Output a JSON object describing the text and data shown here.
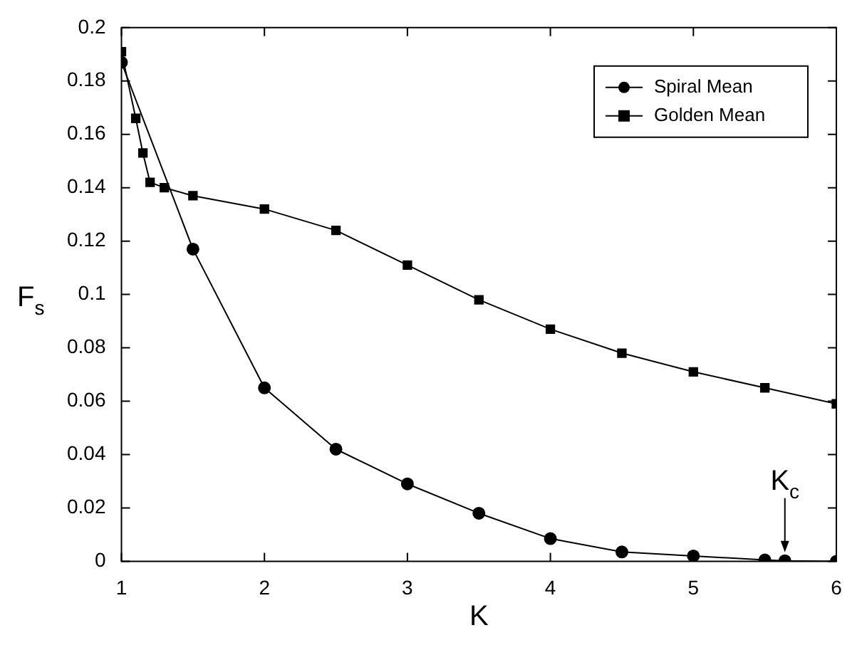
{
  "chart_data": {
    "type": "line",
    "xlabel": "K",
    "ylabel": "F$_{s}$",
    "xlim": [
      1,
      6
    ],
    "ylim": [
      0,
      0.2
    ],
    "xticks": [
      1,
      2,
      3,
      4,
      5,
      6
    ],
    "yticks": [
      0,
      0.02,
      0.04,
      0.06,
      0.08,
      0.1,
      0.12,
      0.14,
      0.16,
      0.18,
      0.2
    ],
    "grid": false,
    "legend": "top right",
    "line_style": "solid",
    "series": [
      {
        "name": "Spiral Mean",
        "color": "#000000",
        "marker": "circle",
        "x": [
          1,
          1.5,
          2,
          2.5,
          3,
          3.5,
          4,
          4.5,
          5,
          5.5,
          5.64,
          6
        ],
        "values": [
          0.187,
          0.117,
          0.065,
          0.042,
          0.029,
          0.018,
          0.0085,
          0.0035,
          0.002,
          0.0005,
          0.0002,
          0
        ]
      },
      {
        "name": "Golden Mean",
        "color": "#000000",
        "marker": "square",
        "x": [
          1,
          1.1,
          1.15,
          1.2,
          1.3,
          1.5,
          2,
          2.5,
          3,
          3.5,
          4,
          4.5,
          5,
          5.5,
          6
        ],
        "values": [
          0.191,
          0.166,
          0.153,
          0.142,
          0.14,
          0.137,
          0.132,
          0.124,
          0.111,
          0.098,
          0.087,
          0.078,
          0.071,
          0.065,
          0.059
        ]
      }
    ],
    "annotations": [
      {
        "text": "K$_{c}$",
        "x": 5.64,
        "y": 0.0002
      }
    ]
  }
}
